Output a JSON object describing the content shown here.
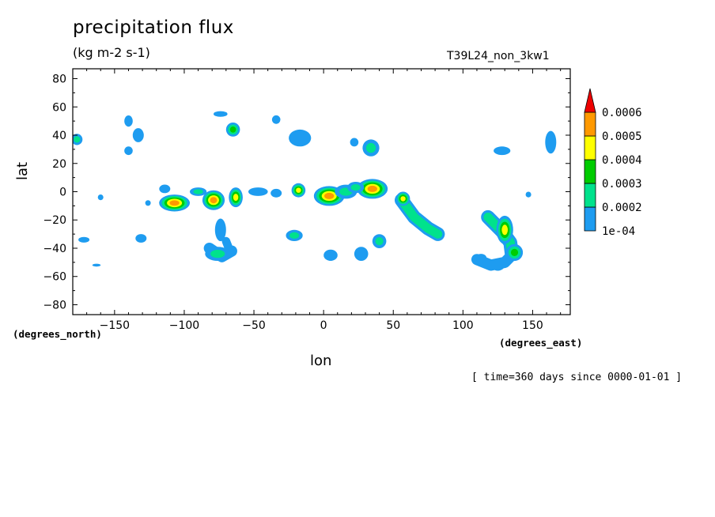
{
  "chart_data": {
    "type": "heatmap",
    "title": "precipitation flux",
    "subtitle": "(kg m-2 s-1)",
    "run_label": "T39L24_non_3kw1",
    "xlabel": "lon",
    "ylabel": "lat",
    "x_units": "(degrees_east)",
    "y_units": "(degrees_north)",
    "time_label": "[ time=360 days since 0000-01-01 ]",
    "xlim": [
      -180,
      177
    ],
    "ylim": [
      -87,
      87
    ],
    "x_ticks": [
      -150,
      -100,
      -50,
      0,
      50,
      100,
      150
    ],
    "y_ticks": [
      80,
      60,
      40,
      20,
      0,
      -20,
      -40,
      -60,
      -80
    ],
    "colorbar": {
      "levels": [
        "1e-04",
        "0.0002",
        "0.0003",
        "0.0004",
        "0.0005",
        "0.0006"
      ],
      "colors": [
        "#1e9cf0",
        "#00e28c",
        "#00cc00",
        "#ffff00",
        "#ff9900",
        "#ee0000"
      ]
    },
    "blobs": [
      {
        "lon": -177,
        "lat": 37,
        "rx": 4,
        "ry": 4,
        "level": 1
      },
      {
        "lon": -160,
        "lat": -4,
        "rx": 2,
        "ry": 2,
        "level": 0
      },
      {
        "lon": -140,
        "lat": 50,
        "rx": 3,
        "ry": 4,
        "level": 0
      },
      {
        "lon": -133,
        "lat": 40,
        "rx": 4,
        "ry": 5,
        "level": 0
      },
      {
        "lon": -140,
        "lat": 29,
        "rx": 3,
        "ry": 3,
        "level": 0
      },
      {
        "lon": -114,
        "lat": 2,
        "rx": 4,
        "ry": 3,
        "level": 0
      },
      {
        "lon": -107,
        "lat": -8,
        "rx": 11,
        "ry": 6,
        "level": 4
      },
      {
        "lon": -90,
        "lat": 0,
        "rx": 6,
        "ry": 3,
        "level": 1
      },
      {
        "lon": -79,
        "lat": -6,
        "rx": 8,
        "ry": 7,
        "level": 4
      },
      {
        "lon": -63,
        "lat": -4,
        "rx": 5,
        "ry": 7,
        "level": 3
      },
      {
        "lon": -65,
        "lat": 44,
        "rx": 5,
        "ry": 5,
        "level": 2
      },
      {
        "lon": -74,
        "lat": 55,
        "rx": 5,
        "ry": 2,
        "level": 0
      },
      {
        "lon": -74,
        "lat": -27,
        "rx": 4,
        "ry": 8,
        "level": 0
      },
      {
        "lon": -76,
        "lat": -44,
        "rx": 9,
        "ry": 5,
        "level": 1
      },
      {
        "lon": -47,
        "lat": 0,
        "rx": 7,
        "ry": 3,
        "level": 0
      },
      {
        "lon": -34,
        "lat": -1,
        "rx": 4,
        "ry": 3,
        "level": 0
      },
      {
        "lon": -18,
        "lat": 1,
        "rx": 5,
        "ry": 5,
        "level": 3
      },
      {
        "lon": -34,
        "lat": 51,
        "rx": 3,
        "ry": 3,
        "level": 0
      },
      {
        "lon": -17,
        "lat": 38,
        "rx": 8,
        "ry": 6,
        "level": 0
      },
      {
        "lon": -21,
        "lat": -31,
        "rx": 6,
        "ry": 4,
        "level": 1
      },
      {
        "lon": 4,
        "lat": -3,
        "rx": 11,
        "ry": 7,
        "level": 4
      },
      {
        "lon": 16,
        "lat": 0,
        "rx": 8,
        "ry": 5,
        "level": 1
      },
      {
        "lon": 35,
        "lat": 2,
        "rx": 11,
        "ry": 7,
        "level": 4
      },
      {
        "lon": 23,
        "lat": 3,
        "rx": 6,
        "ry": 4,
        "level": 1
      },
      {
        "lon": 34,
        "lat": 31,
        "rx": 6,
        "ry": 6,
        "level": 1
      },
      {
        "lon": 22,
        "lat": 35,
        "rx": 3,
        "ry": 3,
        "level": 0
      },
      {
        "lon": 57,
        "lat": -5,
        "rx": 5,
        "ry": 5,
        "level": 3
      },
      {
        "lon": 5,
        "lat": -45,
        "rx": 5,
        "ry": 4,
        "level": 0
      },
      {
        "lon": 27,
        "lat": -44,
        "rx": 5,
        "ry": 5,
        "level": 0
      },
      {
        "lon": 40,
        "lat": -35,
        "rx": 5,
        "ry": 5,
        "level": 1
      },
      {
        "lon": 128,
        "lat": 29,
        "rx": 6,
        "ry": 3,
        "level": 0
      },
      {
        "lon": 163,
        "lat": 35,
        "rx": 4,
        "ry": 8,
        "level": 0
      },
      {
        "lon": 130,
        "lat": -27,
        "rx": 6,
        "ry": 10,
        "level": 3
      },
      {
        "lon": 137,
        "lat": -43,
        "rx": 6,
        "ry": 6,
        "level": 2
      },
      {
        "lon": 125,
        "lat": -52,
        "rx": 5,
        "ry": 4,
        "level": 0
      },
      {
        "lon": 113,
        "lat": -47,
        "rx": 4,
        "ry": 3,
        "level": 0
      },
      {
        "lon": 147,
        "lat": -2,
        "rx": 2,
        "ry": 2,
        "level": 0
      },
      {
        "lon": -172,
        "lat": -34,
        "rx": 4,
        "ry": 2,
        "level": 0
      },
      {
        "lon": -163,
        "lat": -52,
        "rx": 3,
        "ry": 1,
        "level": 0
      },
      {
        "lon": -131,
        "lat": -33,
        "rx": 4,
        "ry": 3,
        "level": 0
      },
      {
        "lon": -126,
        "lat": -8,
        "rx": 2,
        "ry": 2,
        "level": 0
      }
    ],
    "bands": [
      {
        "points": [
          [
            56,
            -6
          ],
          [
            65,
            -18
          ],
          [
            75,
            -26
          ],
          [
            82,
            -30
          ]
        ],
        "width": 5,
        "level": 1
      },
      {
        "points": [
          [
            118,
            -18
          ],
          [
            128,
            -28
          ],
          [
            134,
            -36
          ],
          [
            135,
            -44
          ]
        ],
        "width": 5,
        "level": 1
      },
      {
        "points": [
          [
            110,
            -48
          ],
          [
            120,
            -52
          ],
          [
            130,
            -50
          ],
          [
            137,
            -43
          ]
        ],
        "width": 4,
        "level": 0
      },
      {
        "points": [
          [
            -82,
            -40
          ],
          [
            -73,
            -46
          ],
          [
            -66,
            -42
          ]
        ],
        "width": 4,
        "level": 0
      },
      {
        "points": [
          [
            -68,
            -40
          ],
          [
            -70,
            -35
          ]
        ],
        "width": 3,
        "level": 0
      }
    ]
  }
}
